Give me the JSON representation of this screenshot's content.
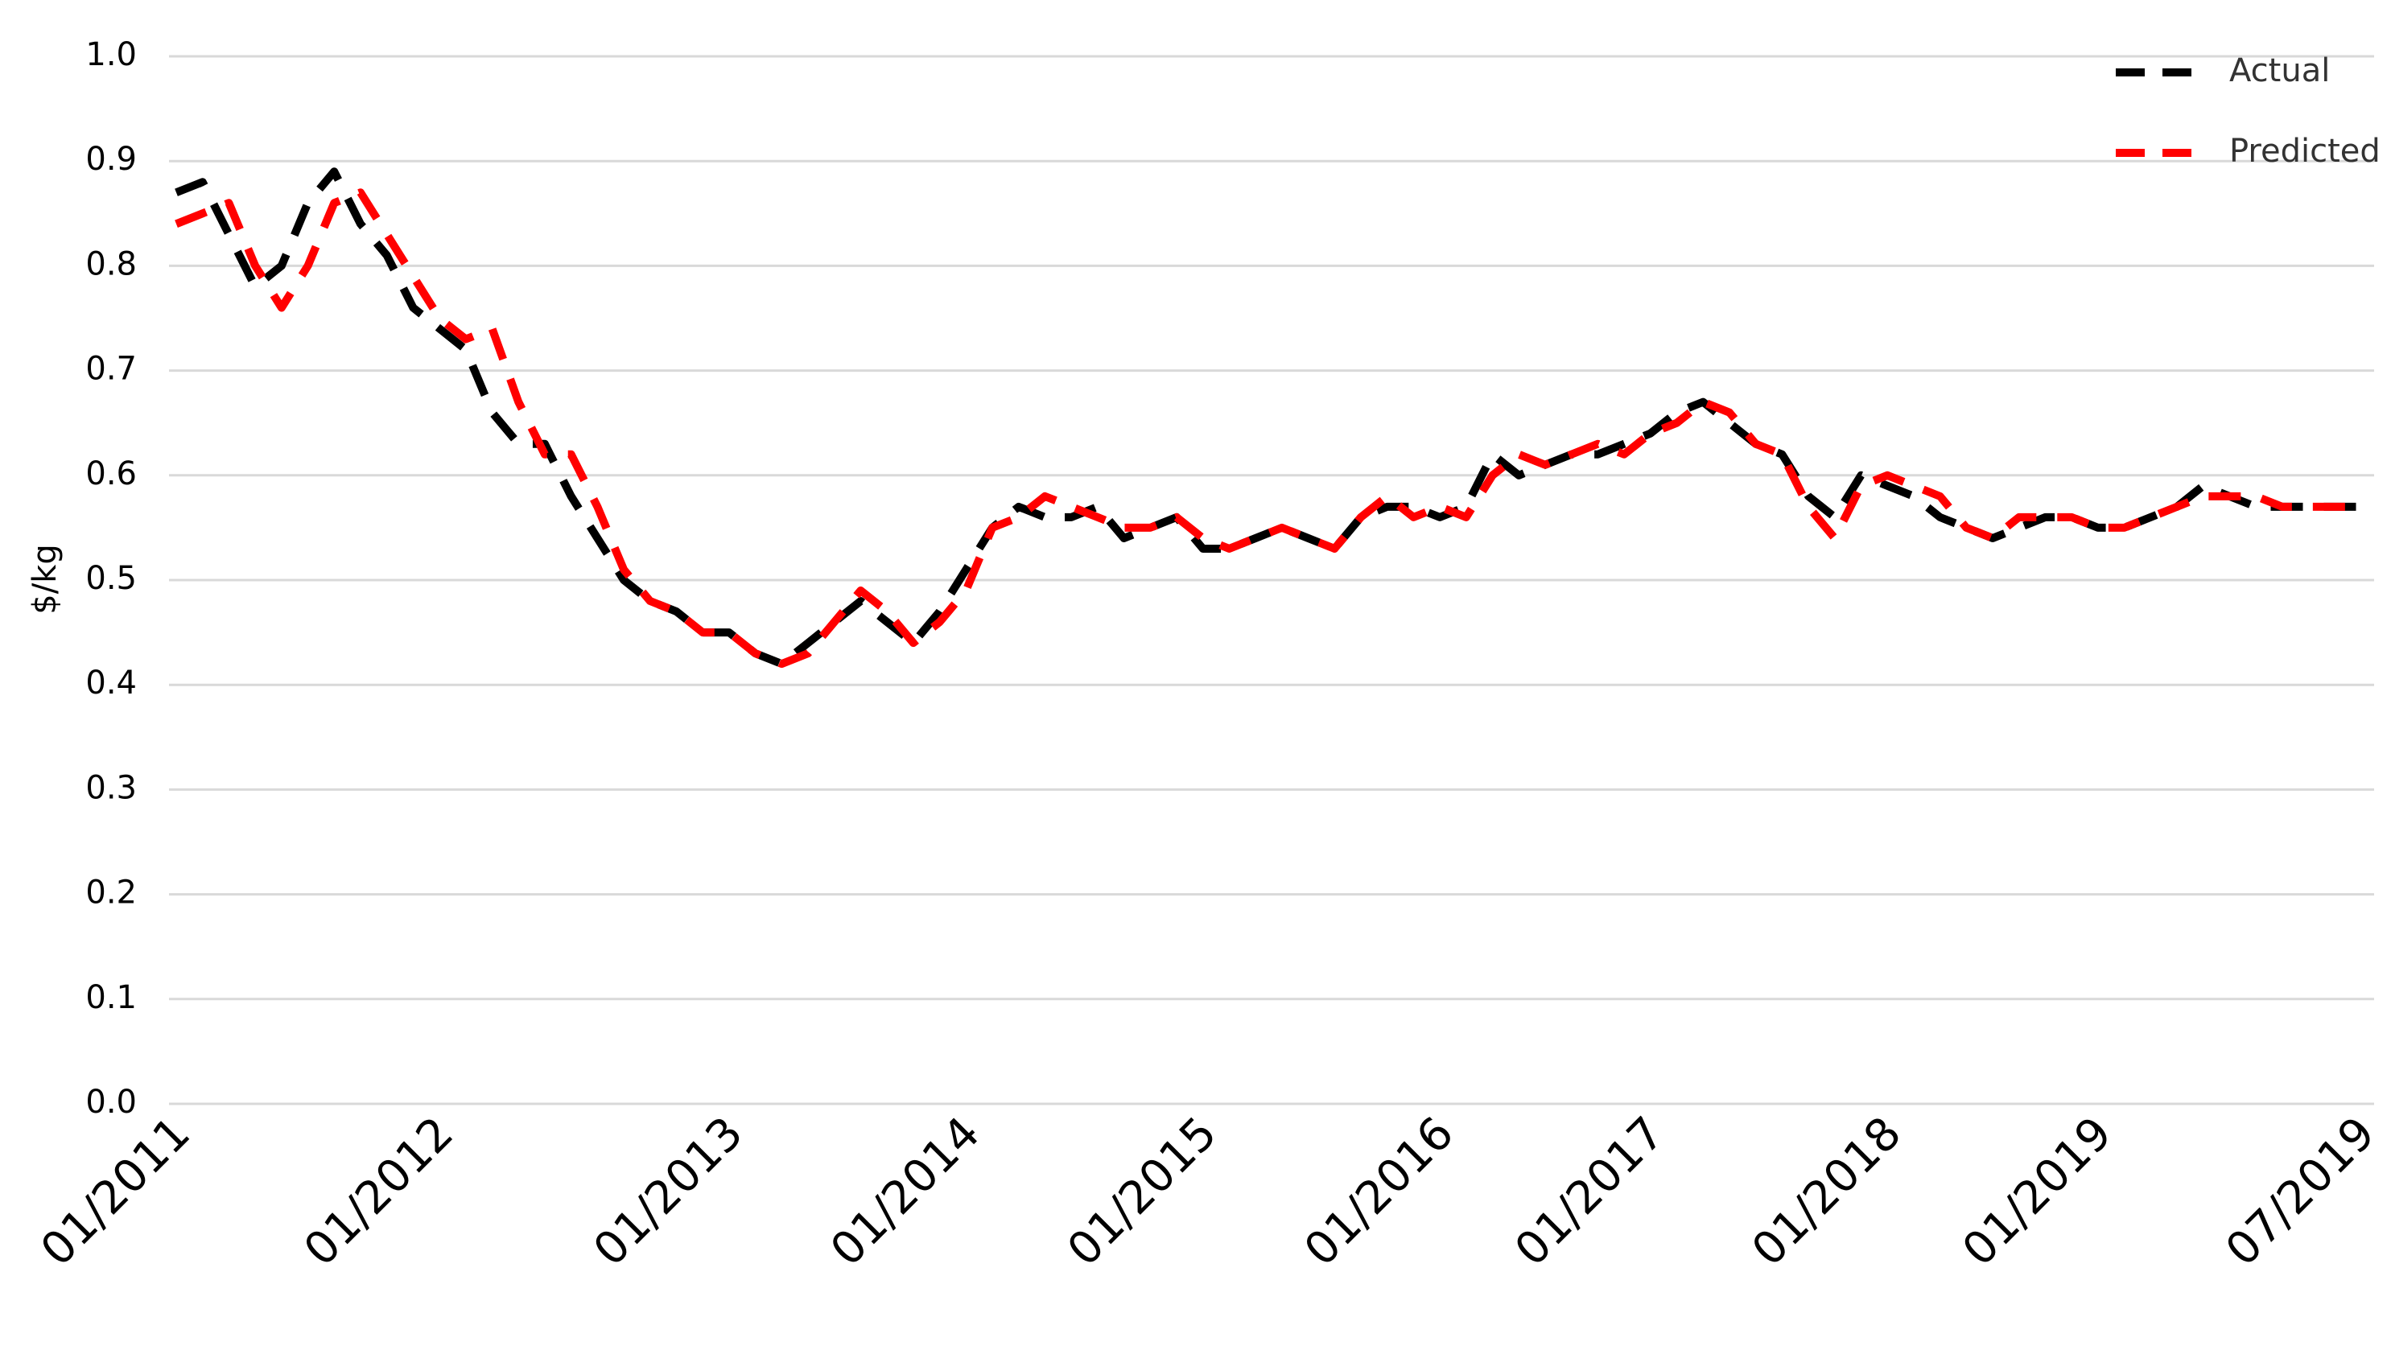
{
  "chart_data": {
    "type": "line",
    "y_label": "$/kg",
    "categories": [
      "01/2011",
      null,
      null,
      null,
      null,
      null,
      null,
      null,
      null,
      null,
      "01/2012",
      null,
      null,
      null,
      null,
      null,
      null,
      null,
      null,
      null,
      null,
      "01/2013",
      null,
      null,
      null,
      null,
      null,
      null,
      null,
      null,
      "01/2014",
      null,
      null,
      null,
      null,
      null,
      null,
      null,
      null,
      "01/2015",
      null,
      null,
      null,
      null,
      null,
      null,
      null,
      null,
      "01/2016",
      null,
      null,
      null,
      null,
      null,
      null,
      null,
      "01/2017",
      null,
      null,
      null,
      null,
      null,
      null,
      null,
      null,
      "01/2018",
      null,
      null,
      null,
      null,
      null,
      null,
      null,
      "01/2019",
      null,
      null,
      null,
      null,
      null,
      null,
      null,
      null,
      null,
      "07/2019"
    ],
    "series": [
      {
        "name": "Actual",
        "color": "#000000",
        "values": [
          0.87,
          0.88,
          0.83,
          0.78,
          0.8,
          0.86,
          0.89,
          0.84,
          0.81,
          0.76,
          0.74,
          0.72,
          0.66,
          0.63,
          0.63,
          0.58,
          0.54,
          0.5,
          0.48,
          0.47,
          0.45,
          0.45,
          0.43,
          0.42,
          0.44,
          0.46,
          0.48,
          0.46,
          0.44,
          0.47,
          0.51,
          0.55,
          0.57,
          0.56,
          0.56,
          0.57,
          0.54,
          0.55,
          0.56,
          0.53,
          0.53,
          0.54,
          0.55,
          0.54,
          0.53,
          0.56,
          0.57,
          0.57,
          0.56,
          0.57,
          0.62,
          0.6,
          0.61,
          0.62,
          0.62,
          0.63,
          0.64,
          0.66,
          0.67,
          0.65,
          0.63,
          0.62,
          0.58,
          0.56,
          0.6,
          0.59,
          0.58,
          0.56,
          0.55,
          0.54,
          0.55,
          0.56,
          0.56,
          0.55,
          0.55,
          0.56,
          0.57,
          0.59,
          0.58,
          0.57,
          0.57,
          0.57,
          0.57,
          0.57
        ]
      },
      {
        "name": "Predicted",
        "color": "#ff0000",
        "values": [
          0.84,
          0.85,
          0.86,
          0.8,
          0.76,
          0.8,
          0.86,
          0.87,
          0.83,
          0.79,
          0.75,
          0.73,
          0.74,
          0.67,
          0.62,
          0.62,
          0.57,
          0.51,
          0.48,
          0.47,
          0.45,
          0.45,
          0.43,
          0.42,
          0.43,
          0.46,
          0.49,
          0.47,
          0.44,
          0.46,
          0.49,
          0.55,
          0.56,
          0.58,
          0.57,
          0.56,
          0.55,
          0.55,
          0.56,
          0.54,
          0.53,
          0.54,
          0.55,
          0.54,
          0.53,
          0.56,
          0.58,
          0.56,
          0.57,
          0.56,
          0.6,
          0.62,
          0.61,
          0.62,
          0.63,
          0.62,
          0.64,
          0.65,
          0.67,
          0.66,
          0.63,
          0.62,
          0.57,
          0.54,
          0.59,
          0.6,
          0.59,
          0.58,
          0.55,
          0.54,
          0.56,
          0.56,
          0.56,
          0.55,
          0.55,
          0.56,
          0.57,
          0.58,
          0.58,
          0.58,
          0.57,
          0.57,
          0.57,
          0.57
        ]
      }
    ],
    "ylim": [
      0,
      1
    ],
    "yticks": [
      {
        "value": 0,
        "label": "0.0"
      },
      0.1,
      0.2,
      0.3,
      0.4,
      0.5,
      0.6,
      0.7,
      0.8,
      0.9,
      {
        "value": 1,
        "label": "1.0"
      }
    ],
    "grid": true,
    "legend": "top-right"
  }
}
